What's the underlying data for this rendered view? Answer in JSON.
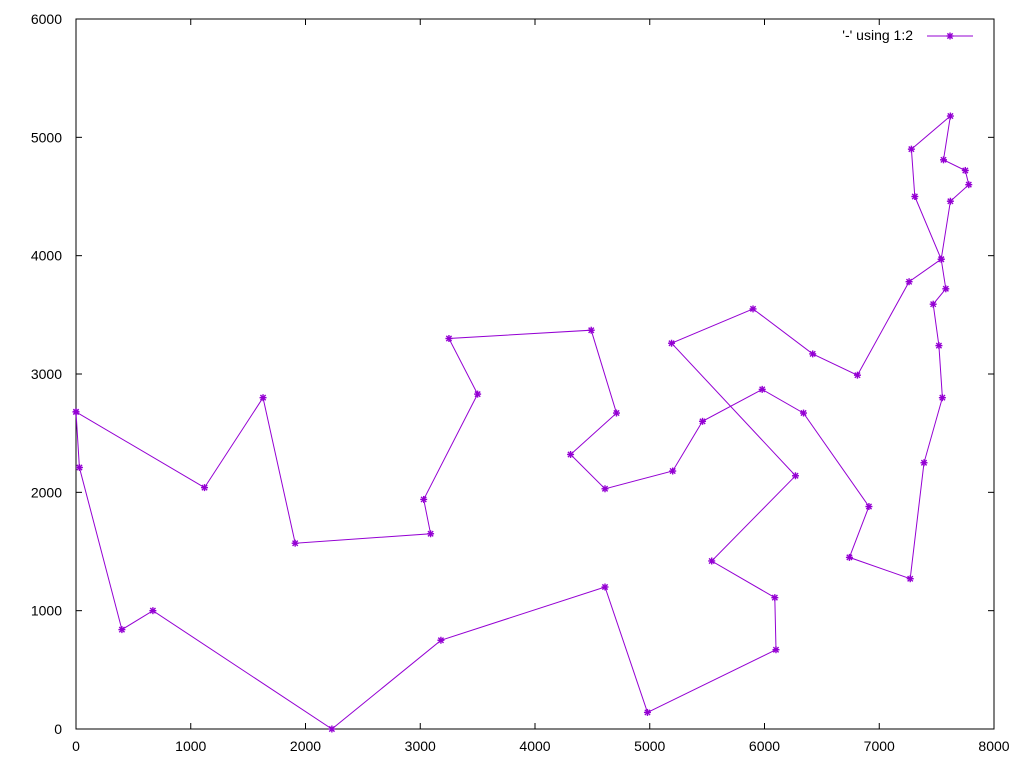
{
  "chart_data": {
    "type": "line",
    "title": "",
    "xlabel": "",
    "ylabel": "",
    "xlim": [
      0,
      8000
    ],
    "ylim": [
      0,
      6000
    ],
    "xticks": [
      0,
      1000,
      2000,
      3000,
      4000,
      5000,
      6000,
      7000,
      8000
    ],
    "yticks": [
      0,
      1000,
      2000,
      3000,
      4000,
      5000,
      6000
    ],
    "grid": false,
    "legend_position": "top-right",
    "colors": {
      "series": "#9400d3",
      "axis": "#000000",
      "background": "#ffffff"
    },
    "series": [
      {
        "name": "'-' using 1:2",
        "marker": "star",
        "points": [
          [
            0,
            2680
          ],
          [
            1120,
            2040
          ],
          [
            1630,
            2800
          ],
          [
            1910,
            1570
          ],
          [
            3090,
            1650
          ],
          [
            3030,
            1940
          ],
          [
            3500,
            2830
          ],
          [
            3250,
            3300
          ],
          [
            4490,
            3370
          ],
          [
            4710,
            2670
          ],
          [
            4310,
            2320
          ],
          [
            4610,
            2030
          ],
          [
            5200,
            2180
          ],
          [
            5460,
            2600
          ],
          [
            5980,
            2870
          ],
          [
            6340,
            2670
          ],
          [
            6910,
            1880
          ],
          [
            6740,
            1450
          ],
          [
            7270,
            1270
          ],
          [
            7390,
            2250
          ],
          [
            7550,
            2800
          ],
          [
            7520,
            3240
          ],
          [
            7470,
            3590
          ],
          [
            7580,
            3720
          ],
          [
            7540,
            3970
          ],
          [
            7310,
            4500
          ],
          [
            7280,
            4900
          ],
          [
            7620,
            5180
          ],
          [
            7560,
            4810
          ],
          [
            7750,
            4720
          ],
          [
            7780,
            4600
          ],
          [
            7620,
            4460
          ],
          [
            7540,
            3970
          ],
          [
            7260,
            3780
          ],
          [
            6810,
            2990
          ],
          [
            6420,
            3170
          ],
          [
            5900,
            3550
          ],
          [
            5190,
            3260
          ],
          [
            6270,
            2140
          ],
          [
            5540,
            1420
          ],
          [
            6090,
            1110
          ],
          [
            6100,
            670
          ],
          [
            4980,
            140
          ],
          [
            4610,
            1200
          ],
          [
            3180,
            750
          ],
          [
            2230,
            0
          ],
          [
            670,
            1000
          ],
          [
            400,
            840
          ],
          [
            30,
            2210
          ],
          [
            0,
            2680
          ]
        ]
      }
    ]
  }
}
